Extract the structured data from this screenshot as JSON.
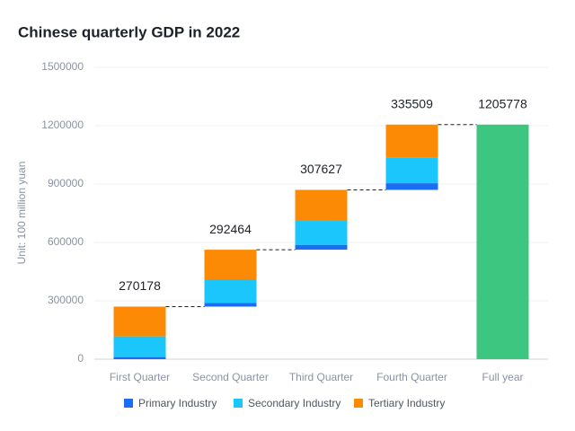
{
  "chart_data": {
    "type": "waterfall",
    "title": "Chinese quarterly GDP in 2022",
    "y_axis_label": "Unit: 100 million yuan",
    "categories": [
      "First Quarter",
      "Second Quarter",
      "Third Quarter",
      "Fourth Quarter",
      "Full year"
    ],
    "series": [
      {
        "name": "Primary Industry",
        "color": "#1b6ef3",
        "values": [
          10954,
          18183,
          25000,
          34000,
          null
        ]
      },
      {
        "name": "Secondary Industry",
        "color": "#1bc6fd",
        "values": [
          106187,
          122450,
          123000,
          130000,
          null
        ]
      },
      {
        "name": "Tertiary Industry",
        "color": "#fd8a05",
        "values": [
          153037,
          151831,
          159627,
          171509,
          null
        ]
      }
    ],
    "totals": [
      270178,
      292464,
      307627,
      335509,
      1205778
    ],
    "total_color": "#3dc67f",
    "ylim": [
      0,
      1500000
    ],
    "yticks": [
      0,
      300000,
      600000,
      900000,
      1200000,
      1500000
    ],
    "grid": true
  }
}
